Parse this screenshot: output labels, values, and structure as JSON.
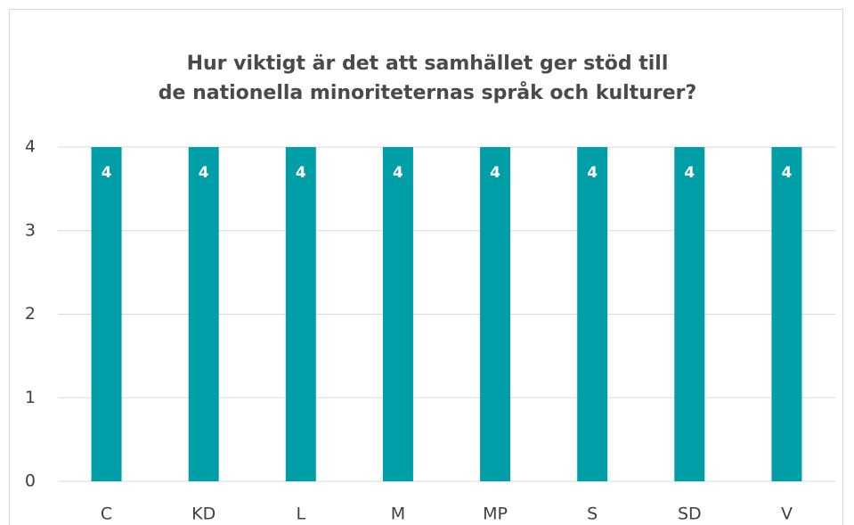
{
  "chart_data": {
    "type": "bar",
    "title": [
      "Hur viktigt är det att samhället ger stöd till",
      "de nationella minoriteternas språk och kulturer?"
    ],
    "categories": [
      "C",
      "KD",
      "L",
      "M",
      "MP",
      "S",
      "SD",
      "V"
    ],
    "values": [
      4,
      4,
      4,
      4,
      4,
      4,
      4,
      4
    ],
    "color": "#009fa7",
    "ylim": [
      0,
      4
    ],
    "yticks": [
      0,
      1,
      2,
      3,
      4
    ],
    "grid": true,
    "data_labels": true
  }
}
